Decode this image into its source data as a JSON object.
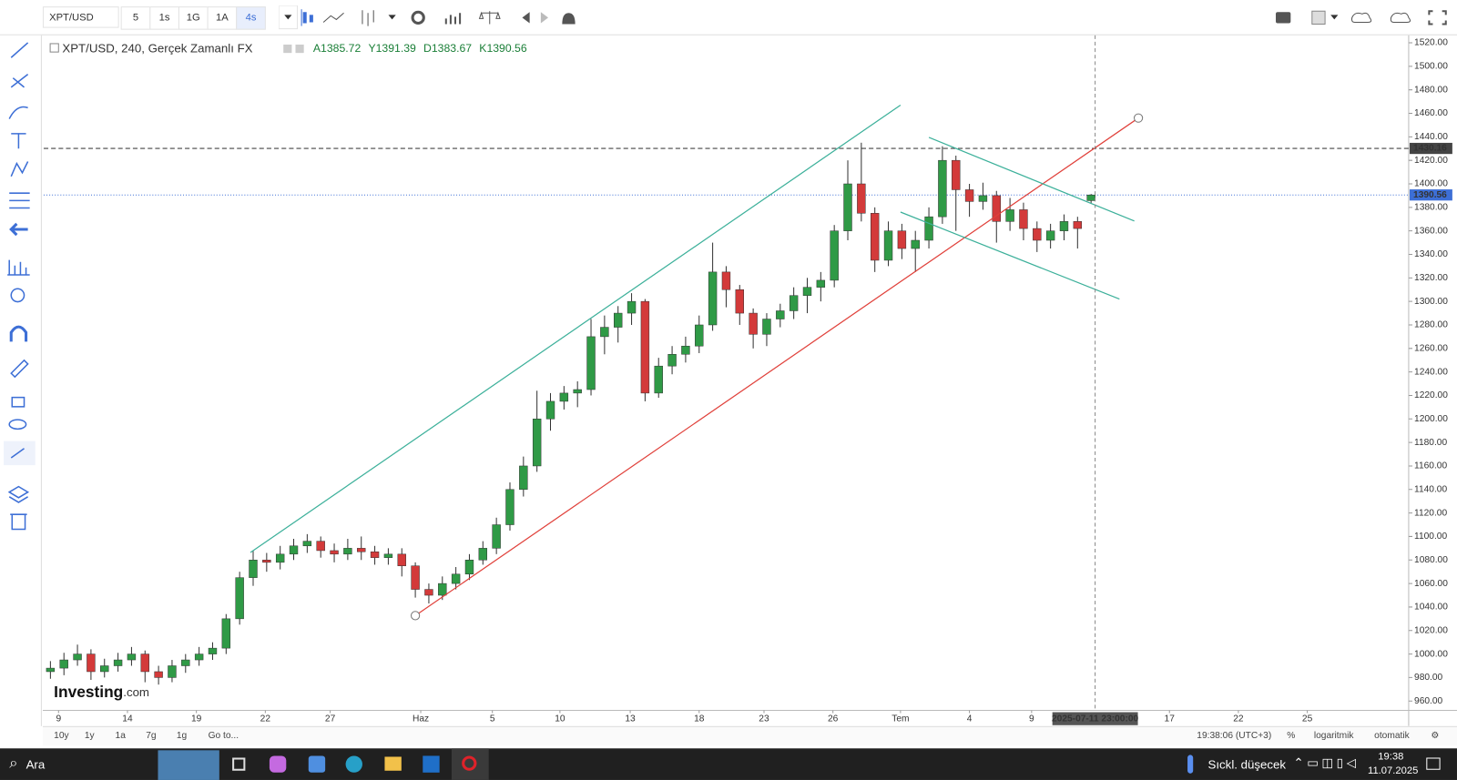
{
  "toolbar": {
    "symbol": "XPT/USD",
    "intervals": [
      "5",
      "1s",
      "1G",
      "1A",
      "4s"
    ],
    "active_interval": 4
  },
  "chart_data": {
    "type": "candlestick",
    "legend": {
      "title": "XPT/USD, 240, Gerçek Zamanlı FX",
      "ohlc": [
        {
          "label": "A",
          "value": 1385.72
        },
        {
          "label": "Y",
          "value": 1391.39
        },
        {
          "label": "D",
          "value": 1383.67
        },
        {
          "label": "K",
          "value": 1390.56
        }
      ]
    },
    "watermark": [
      "Investing",
      ".com"
    ],
    "up_color": "#2f9a46",
    "down_color": "#d33a3a",
    "x": [
      0,
      1,
      2,
      3,
      4,
      5,
      6,
      7,
      8,
      9,
      10,
      11,
      12,
      13,
      14,
      15,
      16,
      17,
      18,
      19,
      20,
      21,
      22,
      23,
      24,
      25,
      26,
      27,
      28,
      29,
      30,
      31,
      32,
      33,
      34,
      35,
      36,
      37,
      38,
      39,
      40,
      41,
      42,
      43,
      44,
      45,
      46,
      47,
      48,
      49,
      50,
      51,
      52,
      53,
      54,
      55,
      56,
      57,
      58,
      59,
      60,
      61,
      62,
      63,
      64,
      65,
      66,
      67,
      68,
      69,
      70,
      71,
      72,
      73,
      74,
      75,
      76,
      77
    ],
    "open": [
      985,
      988,
      995,
      1000,
      985,
      990,
      995,
      1000,
      985,
      980,
      990,
      995,
      1000,
      1005,
      1030,
      1065,
      1080,
      1078,
      1085,
      1092,
      1096,
      1088,
      1085,
      1090,
      1087,
      1082,
      1085,
      1075,
      1055,
      1050,
      1060,
      1068,
      1080,
      1090,
      1110,
      1140,
      1160,
      1200,
      1215,
      1222,
      1225,
      1270,
      1278,
      1290,
      1300,
      1222,
      1245,
      1255,
      1262,
      1280,
      1325,
      1310,
      1290,
      1272,
      1285,
      1292,
      1305,
      1312,
      1318,
      1360,
      1400,
      1375,
      1335,
      1360,
      1345,
      1352,
      1372,
      1420,
      1395,
      1385,
      1390,
      1368,
      1378,
      1362,
      1352,
      1360,
      1368,
      1385.72
    ],
    "high": [
      994,
      1001,
      1008,
      1004,
      996,
      1001,
      1006,
      1003,
      990,
      995,
      1000,
      1006,
      1010,
      1034,
      1070,
      1088,
      1086,
      1092,
      1098,
      1102,
      1100,
      1094,
      1098,
      1100,
      1092,
      1090,
      1090,
      1078,
      1060,
      1066,
      1074,
      1085,
      1096,
      1116,
      1146,
      1168,
      1224,
      1222,
      1228,
      1232,
      1285,
      1288,
      1296,
      1307,
      1302,
      1252,
      1262,
      1270,
      1288,
      1350,
      1330,
      1314,
      1294,
      1290,
      1298,
      1312,
      1320,
      1325,
      1365,
      1420,
      1435,
      1380,
      1368,
      1366,
      1360,
      1380,
      1432,
      1424,
      1400,
      1401,
      1394,
      1388,
      1384,
      1368,
      1366,
      1374,
      1372,
      1391.39
    ],
    "low": [
      979,
      982,
      990,
      978,
      980,
      985,
      990,
      976,
      974,
      976,
      984,
      990,
      995,
      1000,
      1025,
      1058,
      1070,
      1072,
      1080,
      1086,
      1082,
      1078,
      1080,
      1080,
      1076,
      1076,
      1066,
      1048,
      1043,
      1046,
      1055,
      1063,
      1076,
      1085,
      1105,
      1134,
      1155,
      1190,
      1208,
      1210,
      1220,
      1255,
      1265,
      1280,
      1215,
      1218,
      1238,
      1248,
      1256,
      1275,
      1295,
      1280,
      1260,
      1262,
      1278,
      1285,
      1290,
      1300,
      1312,
      1352,
      1368,
      1325,
      1330,
      1336,
      1325,
      1345,
      1366,
      1360,
      1372,
      1378,
      1350,
      1360,
      1352,
      1342,
      1345,
      1352,
      1345,
      1383.67
    ],
    "close": [
      988,
      995,
      1000,
      985,
      990,
      995,
      1000,
      985,
      980,
      990,
      995,
      1000,
      1005,
      1030,
      1065,
      1080,
      1078,
      1085,
      1092,
      1096,
      1088,
      1085,
      1090,
      1087,
      1082,
      1085,
      1075,
      1055,
      1050,
      1060,
      1068,
      1080,
      1090,
      1110,
      1140,
      1160,
      1200,
      1215,
      1222,
      1225,
      1270,
      1278,
      1290,
      1300,
      1222,
      1245,
      1255,
      1262,
      1280,
      1325,
      1310,
      1290,
      1272,
      1285,
      1292,
      1305,
      1312,
      1318,
      1360,
      1400,
      1375,
      1335,
      1360,
      1345,
      1352,
      1372,
      1420,
      1395,
      1385,
      1390,
      1368,
      1378,
      1362,
      1352,
      1360,
      1368,
      1362,
      1390.56
    ],
    "xlim": [
      -0.5,
      100.5
    ],
    "xticks": [
      {
        "value": 0.6,
        "label": "9"
      },
      {
        "value": 5.7,
        "label": "14"
      },
      {
        "value": 10.8,
        "label": "19"
      },
      {
        "value": 15.9,
        "label": "22"
      },
      {
        "value": 20.7,
        "label": "27"
      },
      {
        "value": 27.4,
        "label": "Haz"
      },
      {
        "value": 32.7,
        "label": "5"
      },
      {
        "value": 37.7,
        "label": "10"
      },
      {
        "value": 42.9,
        "label": "13"
      },
      {
        "value": 48.0,
        "label": "18"
      },
      {
        "value": 52.8,
        "label": "23"
      },
      {
        "value": 57.9,
        "label": "26"
      },
      {
        "value": 62.9,
        "label": "Tem"
      },
      {
        "value": 68.0,
        "label": "4"
      },
      {
        "value": 72.6,
        "label": "9"
      },
      {
        "value": 82.8,
        "label": "17"
      },
      {
        "value": 87.9,
        "label": "22"
      },
      {
        "value": 93.0,
        "label": "25"
      }
    ],
    "ylim": [
      952.1,
      1526.4
    ],
    "yticks": [
      {
        "value": 960,
        "label": "960.00"
      },
      {
        "value": 980,
        "label": "980.00"
      },
      {
        "value": 1000,
        "label": "1000.00"
      },
      {
        "value": 1020,
        "label": "1020.00"
      },
      {
        "value": 1040,
        "label": "1040.00"
      },
      {
        "value": 1060,
        "label": "1060.00"
      },
      {
        "value": 1080,
        "label": "1080.00"
      },
      {
        "value": 1100,
        "label": "1100.00"
      },
      {
        "value": 1120,
        "label": "1120.00"
      },
      {
        "value": 1140,
        "label": "1140.00"
      },
      {
        "value": 1160,
        "label": "1160.00"
      },
      {
        "value": 1180,
        "label": "1180.00"
      },
      {
        "value": 1200,
        "label": "1200.00"
      },
      {
        "value": 1220,
        "label": "1220.00"
      },
      {
        "value": 1240,
        "label": "1240.00"
      },
      {
        "value": 1260,
        "label": "1260.00"
      },
      {
        "value": 1280,
        "label": "1280.00"
      },
      {
        "value": 1300,
        "label": "1300.00"
      },
      {
        "value": 1320,
        "label": "1320.00"
      },
      {
        "value": 1340,
        "label": "1340.00"
      },
      {
        "value": 1360,
        "label": "1360.00"
      },
      {
        "value": 1380,
        "label": "1380.00"
      },
      {
        "value": 1400,
        "label": "1400.00"
      },
      {
        "value": 1420,
        "label": "1420.00"
      },
      {
        "value": 1440,
        "label": "1440.00"
      },
      {
        "value": 1460,
        "label": "1460.00"
      },
      {
        "value": 1480,
        "label": "1480.00"
      },
      {
        "value": 1500,
        "label": "1500.00"
      },
      {
        "value": 1520,
        "label": "1520.00"
      }
    ],
    "price_lines": [
      {
        "value": 1430.16,
        "color": "#444444",
        "style": "dashed"
      },
      {
        "value": 1390.56,
        "color": "#3d6fd6",
        "style": "dotted"
      }
    ],
    "crosshair": {
      "x": 77.3,
      "label": "2025-07-11 23:00:00"
    },
    "drawings": [
      {
        "color": "#3cb09a",
        "x": [
          14.8,
          62.9
        ],
        "y": [
          1086.4,
          1467
        ]
      },
      {
        "color": "#e0403a",
        "x": [
          27.0,
          80.5
        ],
        "y": [
          1032.7,
          1456
        ],
        "handles": true
      },
      {
        "color": "#3cb09a",
        "x": [
          65.0,
          80.2
        ],
        "y": [
          1439.5,
          1368.4
        ]
      },
      {
        "color": "#3cb09a",
        "x": [
          62.9,
          79.1
        ],
        "y": [
          1376,
          1302
        ]
      }
    ]
  },
  "bottom_bar": {
    "ranges": [
      "10y",
      "1y",
      "1a",
      "7g",
      "1g"
    ],
    "goto": "Go to...",
    "time": "19:38:06 (UTC+3)",
    "percent": "%",
    "log": "logaritmik",
    "auto": "otomatik"
  },
  "taskbar": {
    "search": "Ara",
    "weather": "Sıckl. düşecek",
    "time": "19:38",
    "date": "11.07.2025"
  }
}
